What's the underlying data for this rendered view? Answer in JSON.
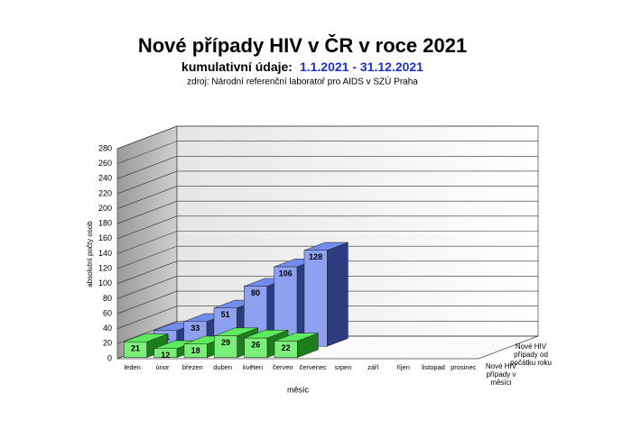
{
  "chart_data": {
    "type": "bar3d",
    "title": "Nové případy HIV v ČR v roce 2021",
    "subtitle": "kumulativní údaje:",
    "period": "1.1.2021 - 31.12.2021",
    "source": "zdroj: Národní referenční laboratoř pro AIDS v SZÚ Praha",
    "y_label": "absolutní počty osob",
    "x_label": "měsíc",
    "categories": [
      "leden",
      "únor",
      "březen",
      "duben",
      "květen",
      "červen",
      "červenec",
      "srpen",
      "září",
      "říjen",
      "listopad",
      "prosinec"
    ],
    "series": [
      {
        "name": "Nové HIV případy v měsíci",
        "color": "#33e633",
        "values": [
          21,
          12,
          18,
          29,
          26,
          22,
          null,
          null,
          null,
          null,
          null,
          null
        ]
      },
      {
        "name": "Nové HIV případy od počátku roku",
        "color": "#4f6fe8",
        "values": [
          21,
          33,
          51,
          80,
          106,
          128,
          null,
          null,
          null,
          null,
          null,
          null
        ]
      }
    ],
    "ylim": [
      0,
      280
    ],
    "yticks": [
      0,
      20,
      40,
      60,
      80,
      100,
      120,
      140,
      160,
      180,
      200,
      220,
      240,
      260,
      280
    ],
    "grid": true
  }
}
